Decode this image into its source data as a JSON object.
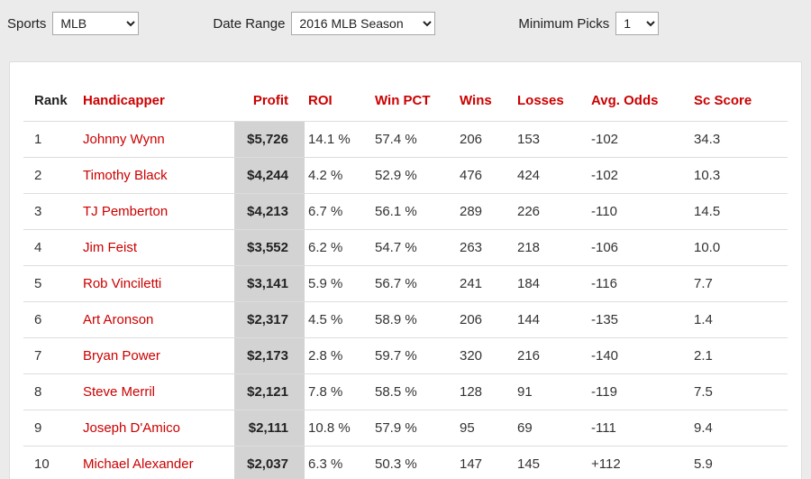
{
  "toolbar": {
    "sports_label": "Sports",
    "sports_value": "MLB",
    "date_range_label": "Date Range",
    "date_range_value": "2016 MLB Season",
    "min_picks_label": "Minimum Picks",
    "min_picks_value": "1"
  },
  "table": {
    "columns": [
      "Rank",
      "Handicapper",
      "Profit",
      "ROI",
      "Win PCT",
      "Wins",
      "Losses",
      "Avg. Odds",
      "Sc Score"
    ],
    "rows": [
      {
        "rank": "1",
        "handicapper": "Johnny Wynn",
        "profit": "$5,726",
        "roi": "14.1 %",
        "win_pct": "57.4 %",
        "wins": "206",
        "losses": "153",
        "avg_odds": "-102",
        "sc_score": "34.3"
      },
      {
        "rank": "2",
        "handicapper": "Timothy Black",
        "profit": "$4,244",
        "roi": "4.2 %",
        "win_pct": "52.9 %",
        "wins": "476",
        "losses": "424",
        "avg_odds": "-102",
        "sc_score": "10.3"
      },
      {
        "rank": "3",
        "handicapper": "TJ Pemberton",
        "profit": "$4,213",
        "roi": "6.7 %",
        "win_pct": "56.1 %",
        "wins": "289",
        "losses": "226",
        "avg_odds": "-110",
        "sc_score": "14.5"
      },
      {
        "rank": "4",
        "handicapper": "Jim Feist",
        "profit": "$3,552",
        "roi": "6.2 %",
        "win_pct": "54.7 %",
        "wins": "263",
        "losses": "218",
        "avg_odds": "-106",
        "sc_score": "10.0"
      },
      {
        "rank": "5",
        "handicapper": "Rob Vinciletti",
        "profit": "$3,141",
        "roi": "5.9 %",
        "win_pct": "56.7 %",
        "wins": "241",
        "losses": "184",
        "avg_odds": "-116",
        "sc_score": "7.7"
      },
      {
        "rank": "6",
        "handicapper": "Art Aronson",
        "profit": "$2,317",
        "roi": "4.5 %",
        "win_pct": "58.9 %",
        "wins": "206",
        "losses": "144",
        "avg_odds": "-135",
        "sc_score": "1.4"
      },
      {
        "rank": "7",
        "handicapper": "Bryan Power",
        "profit": "$2,173",
        "roi": "2.8 %",
        "win_pct": "59.7 %",
        "wins": "320",
        "losses": "216",
        "avg_odds": "-140",
        "sc_score": "2.1"
      },
      {
        "rank": "8",
        "handicapper": "Steve Merril",
        "profit": "$2,121",
        "roi": "7.8 %",
        "win_pct": "58.5 %",
        "wins": "128",
        "losses": "91",
        "avg_odds": "-119",
        "sc_score": "7.5"
      },
      {
        "rank": "9",
        "handicapper": "Joseph D'Amico",
        "profit": "$2,111",
        "roi": "10.8 %",
        "win_pct": "57.9 %",
        "wins": "95",
        "losses": "69",
        "avg_odds": "-111",
        "sc_score": "9.4"
      },
      {
        "rank": "10",
        "handicapper": "Michael Alexander",
        "profit": "$2,037",
        "roi": "6.3 %",
        "win_pct": "50.3 %",
        "wins": "147",
        "losses": "145",
        "avg_odds": "+112",
        "sc_score": "5.9"
      }
    ]
  },
  "colors": {
    "accent_red": "#cc0000",
    "profit_column_bg": "#d3d3d3",
    "page_bg": "#ebebeb"
  }
}
